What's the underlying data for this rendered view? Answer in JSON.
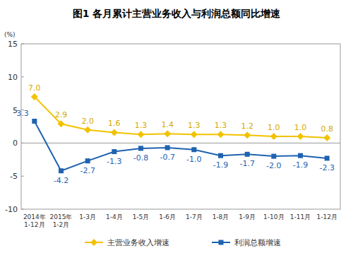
{
  "chart_data": {
    "type": "line",
    "title": "图1 各月累计主营业务收入与利润总额同比增速",
    "y_label": "(%)",
    "categories": [
      "2014年\n1-12月",
      "2015年\n1-2月",
      "1-3月",
      "1-4月",
      "1-5月",
      "1-6月",
      "1-7月",
      "1-8月",
      "1-9月",
      "1-10月",
      "1-11月",
      "1-12月"
    ],
    "series": [
      {
        "name": "主营业务收入增速",
        "color": "#f2c200",
        "marker": "diamond",
        "line_style": "solid",
        "values": [
          7.0,
          2.9,
          2.0,
          1.6,
          1.3,
          1.4,
          1.3,
          1.3,
          1.2,
          1.0,
          1.0,
          0.8
        ],
        "value_labels": [
          "7.0",
          "2.9",
          "2.0",
          "1.6",
          "1.3",
          "1.4",
          "1.3",
          "1.3",
          "1.2",
          "1.0",
          "1.0",
          "0.8"
        ]
      },
      {
        "name": "利润总额增速",
        "color": "#1f62b0",
        "marker": "square",
        "line_style": "solid",
        "values": [
          3.3,
          -4.2,
          -2.7,
          -1.3,
          -0.8,
          -0.7,
          -1.0,
          -1.9,
          -1.7,
          -2.0,
          -1.9,
          -2.3
        ],
        "value_labels": [
          "3.3",
          "-4.2",
          "-2.7",
          "-1.3",
          "-0.8",
          "-0.7",
          "-1.0",
          "-1.9",
          "-1.7",
          "-2.0",
          "-1.9",
          "-2.3"
        ]
      }
    ],
    "ylim": [
      -10,
      15
    ],
    "yticks": [
      -10,
      -5,
      0,
      5,
      10,
      15
    ],
    "grid": false,
    "legend": "bottom",
    "data_labels": true
  }
}
